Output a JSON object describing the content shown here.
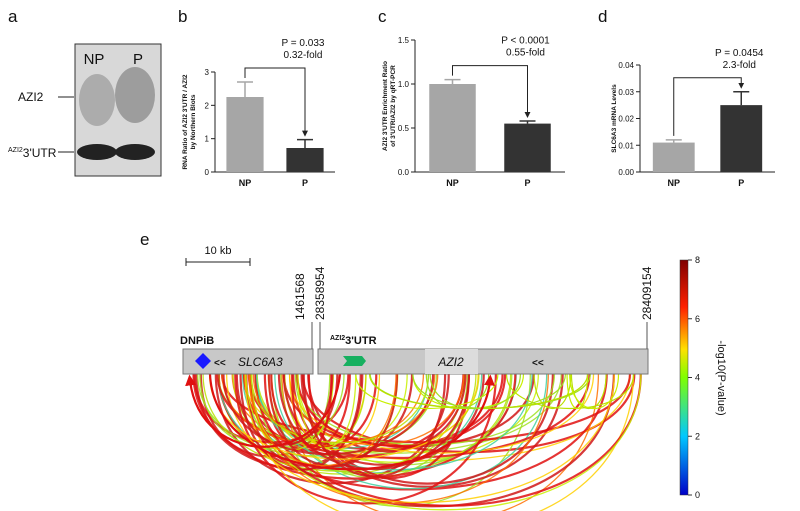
{
  "panel_labels": [
    "a",
    "b",
    "c",
    "d",
    "e"
  ],
  "blot": {
    "lanes": [
      "NP",
      "P"
    ],
    "band_labels": [
      "AZI2",
      {
        "sup": "AZI2",
        "text": "3'UTR"
      }
    ]
  },
  "chart_data": [
    {
      "type": "bar",
      "y_label_lines": [
        "RNA Ratio of AZI2 3'UTR / AZI2",
        "by Northern Blots"
      ],
      "categories": [
        "NP",
        "P"
      ],
      "values": [
        2.25,
        0.72
      ],
      "errors": [
        0.45,
        0.25
      ],
      "colors": [
        "#a6a6a6",
        "#333333"
      ],
      "ylim": [
        0,
        3
      ],
      "yticks": [
        0,
        1,
        2,
        3
      ],
      "annotations": [
        "P = 0.033",
        "0.32-fold"
      ]
    },
    {
      "type": "bar",
      "y_label_lines": [
        "AZI2 3'UTR Enrichment Ratio",
        "of 3'UTR/AZI2 by qRT-PCR"
      ],
      "categories": [
        "NP",
        "P"
      ],
      "values": [
        1.0,
        0.55
      ],
      "errors": [
        0.05,
        0.03
      ],
      "colors": [
        "#a6a6a6",
        "#333333"
      ],
      "ylim": [
        0,
        1.5
      ],
      "yticks": [
        {
          "value": 0,
          "label": "0.0"
        },
        0.5,
        {
          "value": 1,
          "label": "1.0"
        },
        1.5
      ],
      "annotations": [
        "P < 0.0001",
        "0.55-fold"
      ]
    },
    {
      "type": "bar",
      "y_label_lines": [
        "SLC6A3 mRNA Levels"
      ],
      "categories": [
        "NP",
        "P"
      ],
      "values": [
        0.011,
        0.025
      ],
      "errors": [
        0.001,
        0.005
      ],
      "colors": [
        "#a6a6a6",
        "#333333"
      ],
      "ylim": [
        0,
        0.04
      ],
      "yticks": [
        {
          "value": 0,
          "label": "0.00"
        },
        0.01,
        0.02,
        0.03,
        0.04
      ],
      "annotations": [
        "P = 0.0454",
        "2.3-fold"
      ]
    }
  ],
  "genome": {
    "scale": "10 kb",
    "coordinates": [
      "1461568",
      "28358954",
      "28409154"
    ],
    "left_track": {
      "marker": "DNPiB",
      "gene": "SLC6A3",
      "strand": "<<"
    },
    "right_track": {
      "sup": "AZI2",
      "marker": "3'UTR",
      "gene": "AZI2",
      "strand": "<<"
    },
    "colorbar": {
      "label": "-log10(P-value)",
      "lim": [
        0,
        8
      ],
      "ticks": [
        0,
        2,
        4,
        6,
        8
      ]
    }
  }
}
